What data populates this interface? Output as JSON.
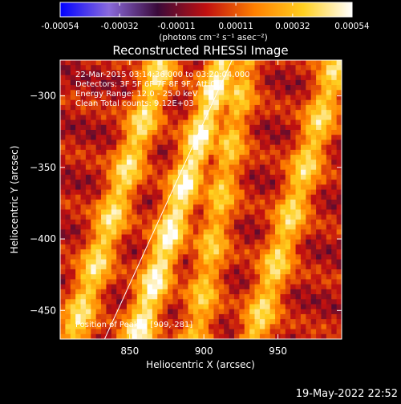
{
  "colorbar": {
    "tick_labels": [
      "-0.00054",
      "-0.00032",
      "-0.00011",
      "0.00011",
      "0.00032",
      "0.00054"
    ],
    "tick_values": [
      -0.00054,
      -0.00032,
      -0.00011,
      0.00011,
      0.00032,
      0.00054
    ],
    "range": [
      -0.00054,
      0.00054
    ],
    "units_label": "(photons cm⁻² s⁻¹ asec⁻²)",
    "colormap": [
      "#0000ff",
      "#8a6adc",
      "#3a0a3a",
      "#c01010",
      "#ff8000",
      "#ffd020",
      "#ffffff"
    ]
  },
  "chart_data": {
    "type": "heatmap",
    "title": "Reconstructed RHESSI Image",
    "xlabel": "Heliocentric X (arcsec)",
    "ylabel": "Heliocentric Y (arcsec)",
    "xlim": [
      803,
      993
    ],
    "ylim": [
      -470,
      -275
    ],
    "x_ticks": [
      850,
      900,
      950
    ],
    "y_ticks": [
      -300,
      -350,
      -400,
      -450
    ],
    "limb_line": [
      [
        833,
        -470
      ],
      [
        919,
        -275
      ]
    ],
    "bright_stripes": [
      {
        "x": [
          814,
          870
        ],
        "y": [
          -462,
          -285
        ],
        "peak": 0.75
      },
      {
        "x": [
          858,
          912
        ],
        "y": [
          -462,
          -285
        ],
        "peak": 0.92
      },
      {
        "x": [
          897,
          928
        ],
        "y": [
          -462,
          -285
        ],
        "peak": 0.6
      },
      {
        "x": [
          938,
          990
        ],
        "y": [
          -462,
          -285
        ],
        "peak": 0.7
      }
    ],
    "annotations": [
      "22-Mar-2015 03:14:36.000 to 03:20:04.000",
      "Detectors: 3F 5F 6F 7F 8F 9F, Att:0",
      "Energy Range: 12.0 - 25.0 keV",
      "Clean     Total counts: 9.12E+03"
    ],
    "peak_label": "Position of Peak = [909,-281]",
    "peak_position": [
      909,
      -281
    ]
  },
  "footer": {
    "timestamp": "19-May-2022 22:52"
  }
}
